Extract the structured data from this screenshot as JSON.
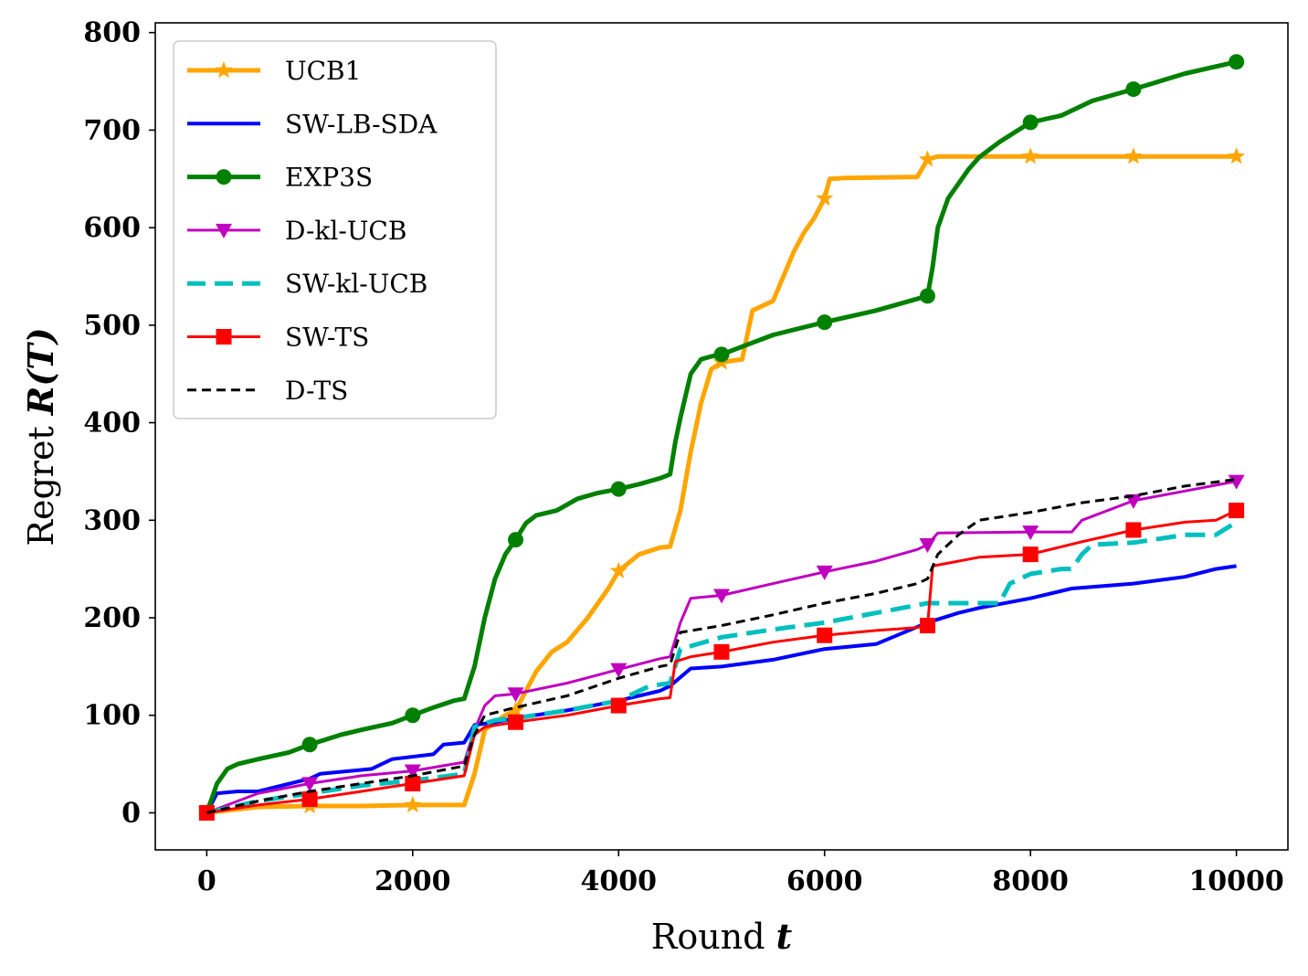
{
  "chart_data": {
    "type": "line",
    "xlabel": "Round",
    "xlabel_var": "t",
    "ylabel": "Regret",
    "ylabel_var": "R(T)",
    "xlim": [
      -500,
      10500
    ],
    "ylim": [
      -38,
      810
    ],
    "xticks": [
      0,
      2000,
      4000,
      6000,
      8000,
      10000
    ],
    "yticks": [
      0,
      100,
      200,
      300,
      400,
      500,
      600,
      700,
      800
    ],
    "legend_position": "top-left",
    "grid": false,
    "series": [
      {
        "name": "UCB1",
        "color": "#FFA500",
        "line": "solid",
        "width": 5,
        "marker": "star",
        "markers_x": [
          0,
          1000,
          2000,
          3000,
          4000,
          5000,
          6000,
          7000,
          8000,
          9000,
          10000
        ],
        "x": [
          0,
          500,
          1000,
          1500,
          2000,
          2500,
          2600,
          2700,
          2900,
          3000,
          3200,
          3350,
          3500,
          3700,
          3900,
          4000,
          4200,
          4400,
          4500,
          4600,
          4700,
          4800,
          4900,
          5000,
          5200,
          5300,
          5500,
          5700,
          5800,
          5900,
          6000,
          6050,
          6200,
          6900,
          7000,
          7100,
          8000,
          9000,
          10000
        ],
        "y": [
          0,
          6,
          7,
          7,
          8,
          8,
          40,
          85,
          100,
          105,
          145,
          165,
          175,
          200,
          230,
          248,
          265,
          272,
          273,
          310,
          370,
          420,
          455,
          462,
          465,
          515,
          525,
          575,
          595,
          610,
          630,
          650,
          651,
          652,
          670,
          673,
          673,
          673,
          673
        ]
      },
      {
        "name": "SW-LB-SDA",
        "color": "#0000FF",
        "line": "solid",
        "width": 4,
        "marker": "none",
        "markers_x": [],
        "x": [
          0,
          100,
          300,
          500,
          1000,
          1100,
          1600,
          1800,
          2200,
          2300,
          2500,
          2600,
          2800,
          3000,
          3500,
          4000,
          4400,
          4500,
          4700,
          5000,
          5500,
          6000,
          6500,
          7000,
          7300,
          7500,
          8000,
          8400,
          9000,
          9500,
          9800,
          10000
        ],
        "y": [
          0,
          20,
          22,
          22,
          35,
          40,
          45,
          55,
          60,
          70,
          72,
          90,
          93,
          97,
          105,
          115,
          125,
          130,
          148,
          150,
          157,
          168,
          173,
          195,
          205,
          210,
          220,
          230,
          235,
          242,
          250,
          253
        ]
      },
      {
        "name": "EXP3S",
        "color": "#008000",
        "line": "solid",
        "width": 5,
        "marker": "circle",
        "markers_x": [
          0,
          1000,
          2000,
          3000,
          4000,
          5000,
          6000,
          7000,
          8000,
          9000,
          10000
        ],
        "x": [
          0,
          100,
          200,
          300,
          500,
          800,
          1000,
          1300,
          1500,
          1800,
          2000,
          2200,
          2400,
          2500,
          2600,
          2700,
          2800,
          2900,
          3000,
          3100,
          3200,
          3400,
          3600,
          3800,
          4000,
          4200,
          4400,
          4500,
          4550,
          4600,
          4700,
          4800,
          4900,
          5000,
          5200,
          5500,
          6000,
          6500,
          7000,
          7050,
          7100,
          7200,
          7300,
          7400,
          7500,
          7700,
          8000,
          8300,
          8600,
          9000,
          9500,
          10000
        ],
        "y": [
          0,
          30,
          45,
          50,
          55,
          62,
          70,
          80,
          85,
          92,
          100,
          108,
          115,
          117,
          150,
          200,
          240,
          265,
          280,
          297,
          305,
          310,
          322,
          328,
          332,
          337,
          343,
          347,
          380,
          405,
          450,
          465,
          468,
          470,
          478,
          490,
          503,
          515,
          530,
          560,
          600,
          630,
          645,
          660,
          672,
          688,
          708,
          715,
          730,
          742,
          758,
          770
        ]
      },
      {
        "name": "D-kl-UCB",
        "color": "#BF00BF",
        "line": "solid",
        "width": 3,
        "marker": "triangle-down",
        "markers_x": [
          0,
          1000,
          2000,
          3000,
          4000,
          5000,
          6000,
          7000,
          8000,
          9000,
          10000
        ],
        "x": [
          0,
          500,
          1000,
          1500,
          2000,
          2500,
          2600,
          2700,
          2800,
          3000,
          3500,
          4000,
          4400,
          4500,
          4600,
          4700,
          5000,
          5500,
          6000,
          6500,
          6900,
          7000,
          7100,
          8000,
          8400,
          8500,
          9000,
          9500,
          10000
        ],
        "y": [
          0,
          20,
          30,
          38,
          43,
          52,
          85,
          110,
          120,
          122,
          133,
          147,
          158,
          160,
          195,
          220,
          223,
          235,
          247,
          258,
          270,
          275,
          287,
          288,
          288,
          300,
          320,
          330,
          340
        ]
      },
      {
        "name": "SW-kl-UCB",
        "color": "#00BFBF",
        "line": "dashed",
        "width": 5,
        "marker": "none",
        "markers_x": [],
        "x": [
          0,
          500,
          1000,
          1500,
          2000,
          2500,
          2600,
          2800,
          3000,
          3500,
          4000,
          4300,
          4500,
          4600,
          5000,
          5500,
          6000,
          6500,
          7000,
          7500,
          7700,
          7800,
          8000,
          8300,
          8400,
          8500,
          8600,
          9000,
          9500,
          9800,
          10000
        ],
        "y": [
          0,
          12,
          20,
          28,
          33,
          40,
          88,
          95,
          97,
          105,
          115,
          130,
          133,
          168,
          180,
          188,
          195,
          205,
          215,
          215,
          215,
          235,
          245,
          250,
          250,
          265,
          275,
          277,
          285,
          285,
          298
        ]
      },
      {
        "name": "SW-TS",
        "color": "#FF0000",
        "line": "solid",
        "width": 3,
        "marker": "square",
        "markers_x": [
          0,
          1000,
          2000,
          3000,
          4000,
          5000,
          6000,
          7000,
          8000,
          9000,
          10000
        ],
        "x": [
          0,
          500,
          1000,
          1500,
          2000,
          2500,
          2600,
          2700,
          3000,
          3500,
          4000,
          4400,
          4500,
          4550,
          4700,
          5000,
          5500,
          6000,
          6500,
          6900,
          7000,
          7050,
          7500,
          8000,
          8500,
          9000,
          9500,
          9800,
          10000
        ],
        "y": [
          0,
          8,
          14,
          22,
          30,
          38,
          80,
          88,
          93,
          100,
          110,
          117,
          118,
          155,
          160,
          165,
          175,
          182,
          187,
          190,
          192,
          253,
          262,
          265,
          278,
          290,
          298,
          300,
          310
        ]
      },
      {
        "name": "D-TS",
        "color": "#000000",
        "line": "dashed",
        "width": 3,
        "marker": "none",
        "markers_x": [],
        "x": [
          0,
          500,
          1000,
          1500,
          2000,
          2500,
          2600,
          2700,
          3000,
          3500,
          4000,
          4400,
          4500,
          4600,
          5000,
          5500,
          6000,
          6500,
          6900,
          7000,
          7100,
          7300,
          7500,
          8000,
          8500,
          9000,
          9500,
          10000
        ],
        "y": [
          0,
          12,
          22,
          30,
          38,
          48,
          80,
          100,
          108,
          120,
          138,
          150,
          152,
          185,
          192,
          203,
          215,
          225,
          235,
          240,
          265,
          285,
          300,
          308,
          318,
          325,
          335,
          342
        ]
      }
    ]
  }
}
